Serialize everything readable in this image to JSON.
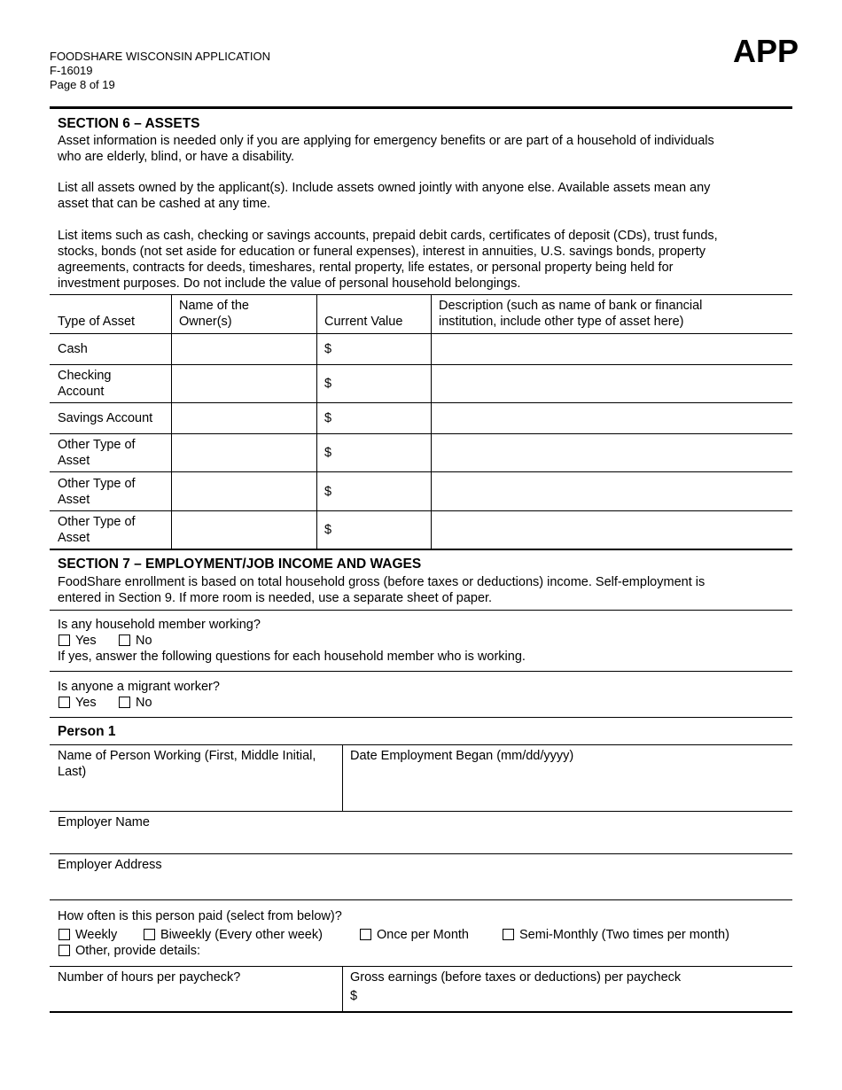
{
  "header": {
    "form_title": "FOODSHARE WISCONSIN APPLICATION",
    "form_number": "F-16019",
    "page": "Page 8 of 19",
    "badge": "APP"
  },
  "section6": {
    "title": "SECTION 6 – ASSETS",
    "para1": [
      "Asset information is needed only if you are applying for emergency benefits or are part of a household of individuals",
      "who are elderly, blind, or have a disability."
    ],
    "para2": [
      "List all assets owned by the applicant(s). Include assets owned jointly with anyone else. Available assets mean any",
      "asset that can be cashed at any time."
    ],
    "para3": [
      "List items such as cash, checking or savings accounts, prepaid debit cards, certificates of deposit (CDs), trust funds,",
      "stocks, bonds (not set aside for education or funeral expenses), interest in annuities, U.S. savings bonds, property",
      "agreements, contracts for deeds, timeshares, rental property, life estates, or personal property being held for",
      "investment purposes. Do not include the value of personal household belongings."
    ],
    "table": {
      "headers": [
        "Type of Asset",
        [
          "Name of the",
          "Owner(s)"
        ],
        "Current Value",
        [
          "Description (such as name of bank or financial",
          "institution, include other type of asset here)"
        ]
      ],
      "rows": [
        {
          "type": [
            "Cash"
          ],
          "owner": "",
          "value": "$",
          "description": ""
        },
        {
          "type": [
            "Checking",
            "Account"
          ],
          "owner": "",
          "value": "$",
          "description": ""
        },
        {
          "type": [
            "Savings Account"
          ],
          "owner": "",
          "value": "$",
          "description": ""
        },
        {
          "type": [
            "Other Type of",
            "Asset"
          ],
          "owner": "",
          "value": "$",
          "description": ""
        },
        {
          "type": [
            "Other Type of",
            "Asset"
          ],
          "owner": "",
          "value": "$",
          "description": ""
        },
        {
          "type": [
            "Other Type of",
            "Asset"
          ],
          "owner": "",
          "value": "$",
          "description": ""
        }
      ]
    }
  },
  "section7": {
    "title": "SECTION 7 – EMPLOYMENT/JOB INCOME AND WAGES",
    "intro": [
      "FoodShare enrollment is based on total household gross (before taxes or deductions) income. Self-employment is",
      "entered in Section 9. If more room is needed, use a separate sheet of paper."
    ],
    "q_working": "Is any household member working?",
    "q_working_note": "If yes, answer the following questions for each household member who is working.",
    "q_migrant": "Is anyone a migrant worker?",
    "yes": "Yes",
    "no": "No",
    "person_label": "Person 1",
    "name_label": [
      "Name of Person Working (First, Middle Initial,",
      "Last)"
    ],
    "date_label": "Date Employment Began (mm/dd/yyyy)",
    "employer_name_label": "Employer Name",
    "employer_address_label": "Employer Address",
    "pay_freq_question": "How often is this person paid (select from below)?",
    "pay_freq_options": [
      "Weekly",
      "Biweekly (Every other week)",
      "Once per Month",
      "Semi-Monthly (Two times per month)",
      "Other, provide details:"
    ],
    "hours_label": "Number of hours per paycheck?",
    "gross_label": "Gross earnings (before taxes or deductions) per paycheck",
    "gross_currency": "$"
  }
}
